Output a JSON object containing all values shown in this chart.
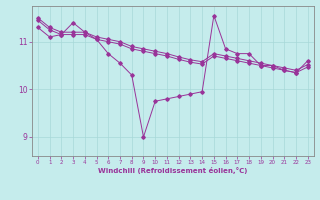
{
  "title": "",
  "xlabel": "Windchill (Refroidissement éolien,°C)",
  "ylabel": "",
  "bg_color": "#c5ecec",
  "line_color": "#993399",
  "grid_color": "#a8d8d8",
  "axis_color": "#888888",
  "ylim": [
    8.6,
    11.75
  ],
  "xlim": [
    -0.5,
    23.5
  ],
  "yticks": [
    9,
    10,
    11
  ],
  "xticks": [
    0,
    1,
    2,
    3,
    4,
    5,
    6,
    7,
    8,
    9,
    10,
    11,
    12,
    13,
    14,
    15,
    16,
    17,
    18,
    19,
    20,
    21,
    22,
    23
  ],
  "series_main": [
    11.3,
    11.1,
    11.15,
    11.4,
    11.2,
    11.05,
    10.75,
    10.55,
    10.3,
    9.0,
    9.75,
    9.8,
    9.85,
    9.9,
    9.95,
    11.55,
    10.85,
    10.75,
    10.75,
    10.5,
    10.5,
    10.4,
    10.35,
    10.6
  ],
  "series_high": [
    11.5,
    11.3,
    11.2,
    11.2,
    11.2,
    11.1,
    11.05,
    11.0,
    10.9,
    10.85,
    10.8,
    10.75,
    10.68,
    10.62,
    10.58,
    10.75,
    10.7,
    10.65,
    10.6,
    10.55,
    10.5,
    10.45,
    10.4,
    10.52
  ],
  "series_low": [
    11.45,
    11.25,
    11.15,
    11.15,
    11.15,
    11.05,
    11.0,
    10.95,
    10.85,
    10.8,
    10.75,
    10.7,
    10.63,
    10.57,
    10.53,
    10.7,
    10.65,
    10.6,
    10.55,
    10.5,
    10.45,
    10.4,
    10.35,
    10.47
  ]
}
